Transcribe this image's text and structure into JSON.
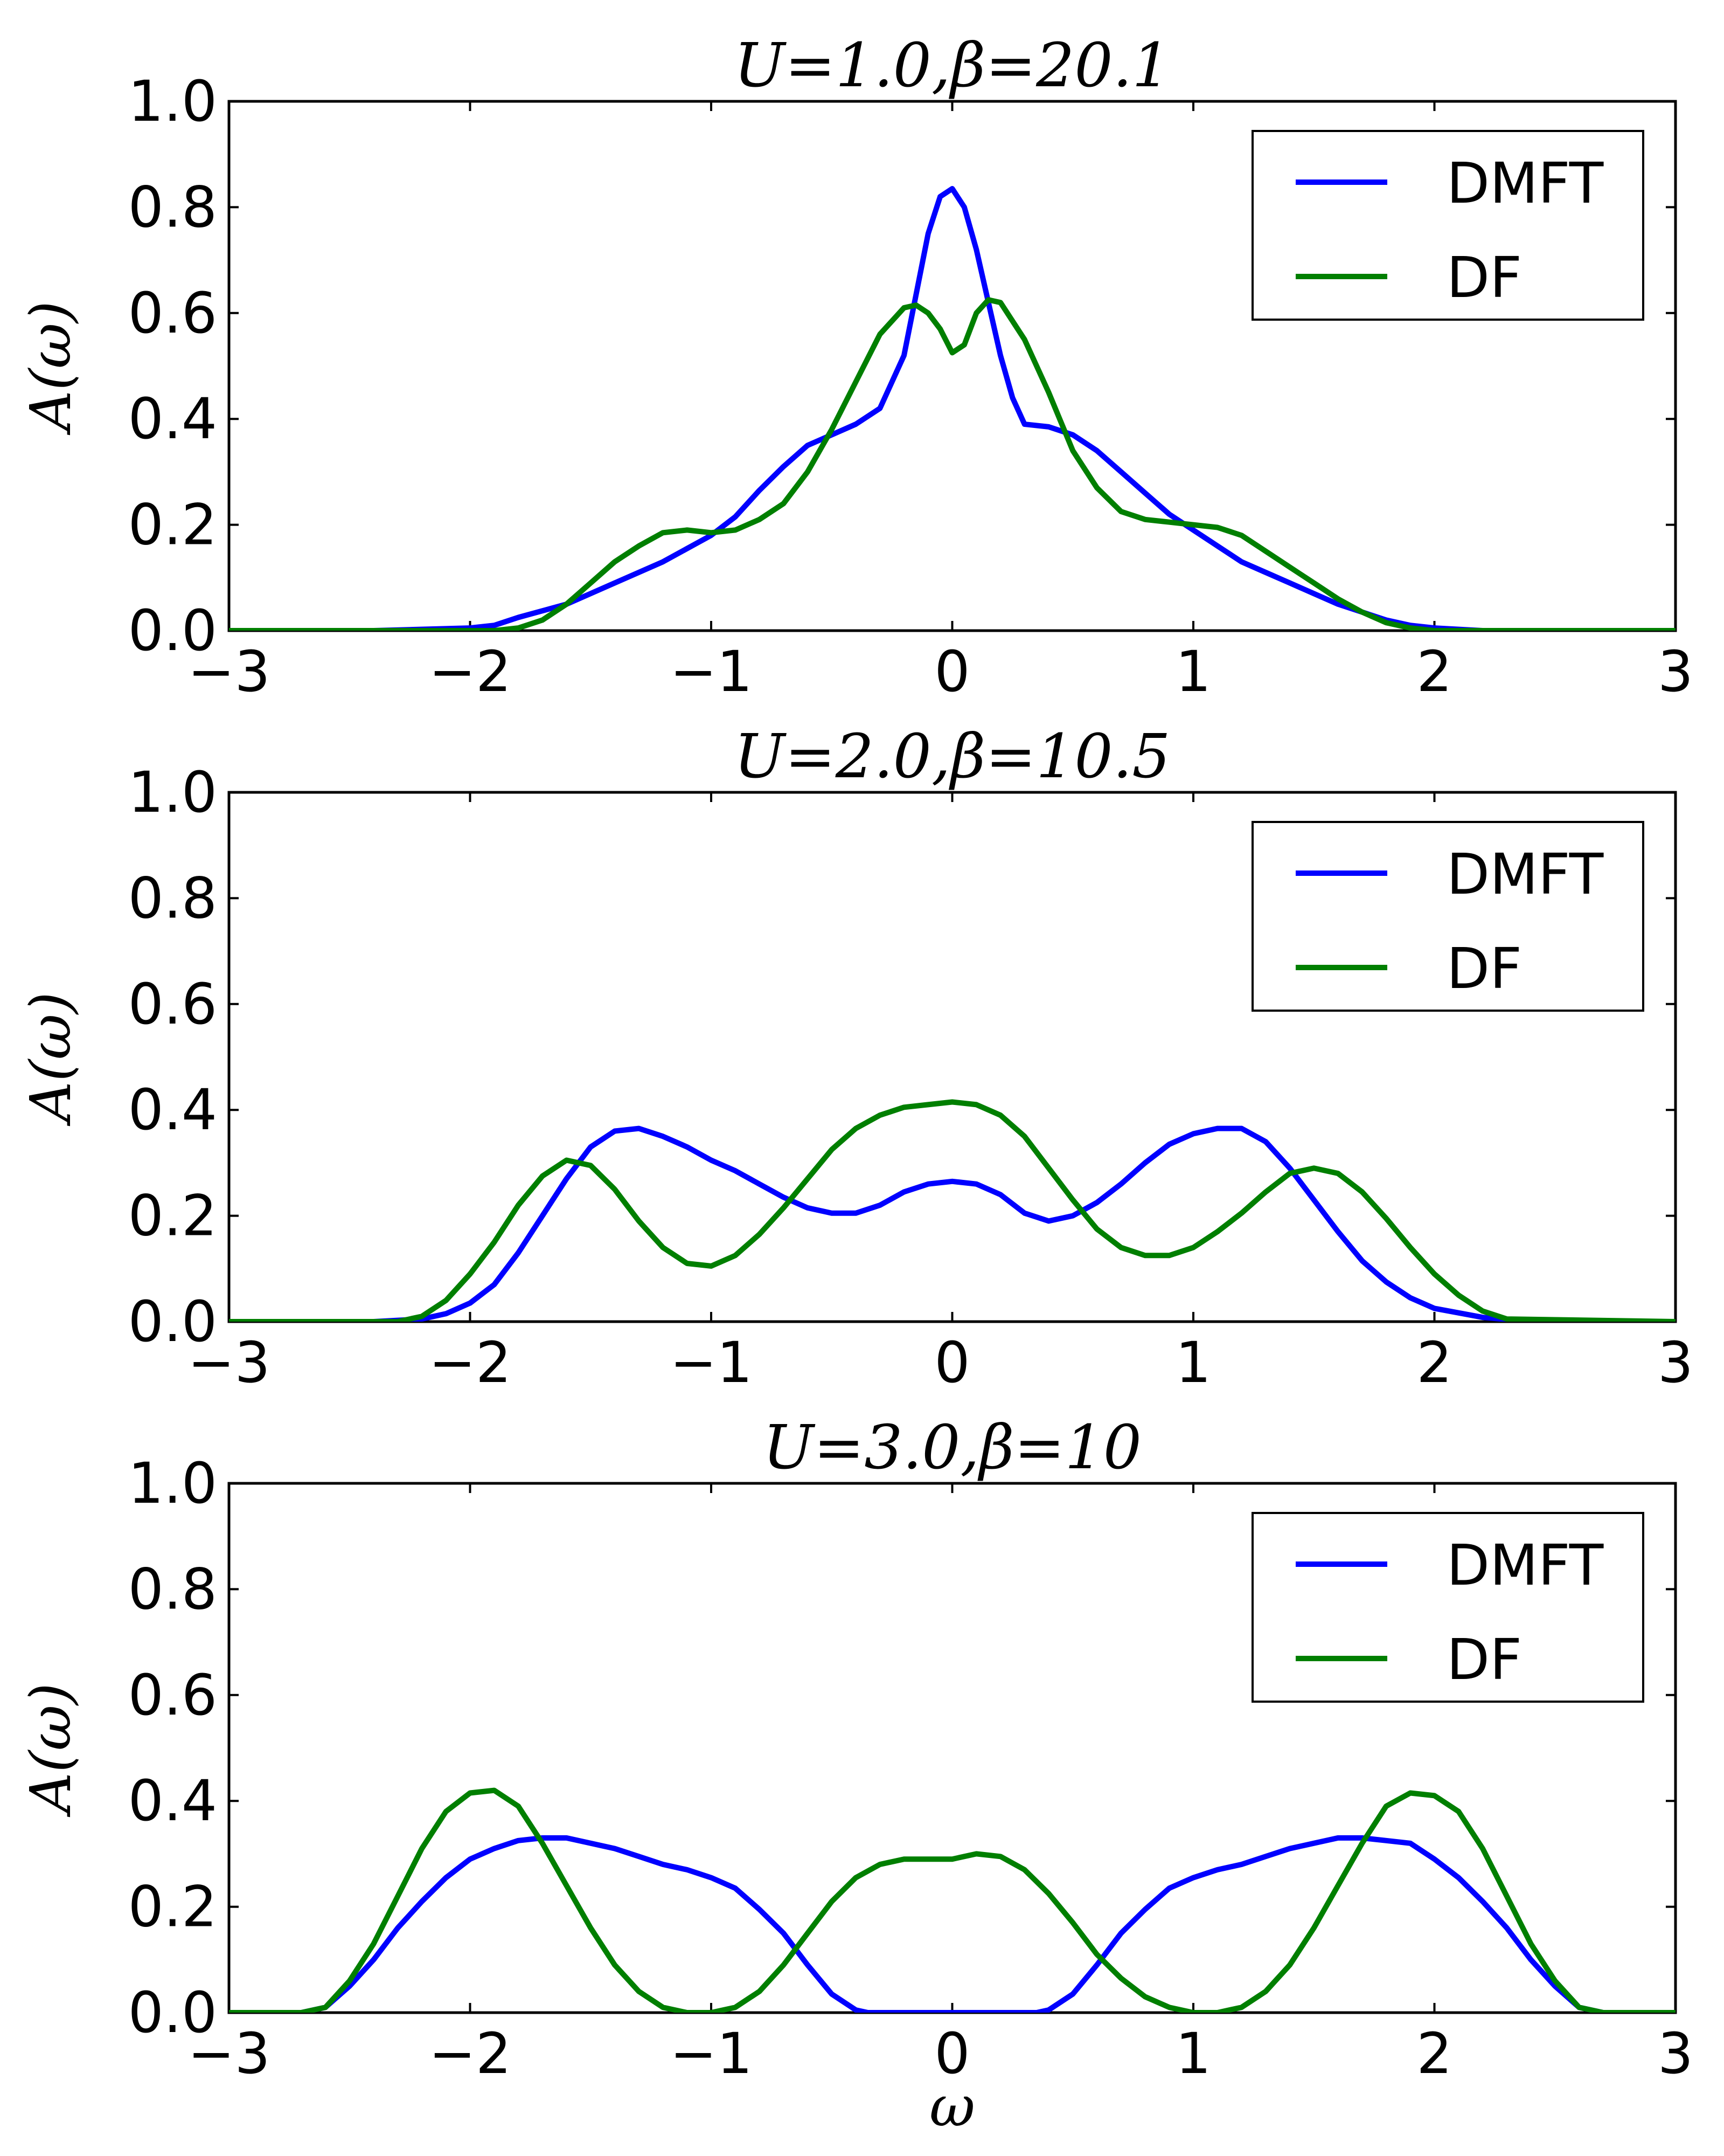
{
  "colors": {
    "DMFT": "#0000ff",
    "DF": "#007f00"
  },
  "legend_entries": [
    "DMFT",
    "DF"
  ],
  "chart_data": [
    {
      "type": "line",
      "title": "U=1.0,β=20.1",
      "xlabel": "",
      "ylabel": "A(ω)",
      "xlim": [
        -3,
        3
      ],
      "ylim": [
        0,
        1.0
      ],
      "xticks": [
        "−3",
        "−2",
        "−1",
        "0",
        "1",
        "2",
        "3"
      ],
      "yticks": [
        "0.0",
        "0.2",
        "0.4",
        "0.6",
        "0.8",
        "1.0"
      ],
      "legend_position": "upper-right",
      "series": [
        {
          "name": "DMFT",
          "x": [
            -3,
            -2.4,
            -2.0,
            -1.9,
            -1.8,
            -1.6,
            -1.4,
            -1.2,
            -1.0,
            -0.9,
            -0.8,
            -0.7,
            -0.6,
            -0.5,
            -0.4,
            -0.3,
            -0.2,
            -0.1,
            -0.05,
            0.0,
            0.05,
            0.1,
            0.2,
            0.25,
            0.3,
            0.4,
            0.5,
            0.6,
            0.7,
            0.8,
            0.9,
            1.0,
            1.1,
            1.2,
            1.3,
            1.4,
            1.5,
            1.6,
            1.7,
            1.8,
            1.9,
            2.0,
            2.2,
            3
          ],
          "y": [
            0,
            0,
            0.005,
            0.01,
            0.025,
            0.05,
            0.09,
            0.13,
            0.18,
            0.215,
            0.265,
            0.31,
            0.35,
            0.37,
            0.39,
            0.42,
            0.52,
            0.75,
            0.82,
            0.835,
            0.8,
            0.72,
            0.52,
            0.44,
            0.39,
            0.385,
            0.37,
            0.34,
            0.3,
            0.26,
            0.22,
            0.19,
            0.16,
            0.13,
            0.11,
            0.09,
            0.07,
            0.05,
            0.035,
            0.02,
            0.01,
            0.005,
            0,
            0
          ]
        },
        {
          "name": "DF",
          "x": [
            -3,
            -1.9,
            -1.8,
            -1.7,
            -1.6,
            -1.5,
            -1.4,
            -1.3,
            -1.2,
            -1.1,
            -1.0,
            -0.9,
            -0.8,
            -0.7,
            -0.6,
            -0.5,
            -0.4,
            -0.3,
            -0.2,
            -0.15,
            -0.1,
            -0.05,
            0.0,
            0.05,
            0.1,
            0.15,
            0.2,
            0.3,
            0.4,
            0.5,
            0.6,
            0.7,
            0.8,
            0.9,
            1.0,
            1.1,
            1.2,
            1.3,
            1.4,
            1.5,
            1.6,
            1.7,
            1.8,
            1.9,
            2.0,
            3
          ],
          "y": [
            0,
            0,
            0.005,
            0.02,
            0.05,
            0.09,
            0.13,
            0.16,
            0.185,
            0.19,
            0.185,
            0.19,
            0.21,
            0.24,
            0.3,
            0.38,
            0.47,
            0.56,
            0.61,
            0.615,
            0.6,
            0.57,
            0.525,
            0.54,
            0.6,
            0.625,
            0.62,
            0.55,
            0.45,
            0.34,
            0.27,
            0.225,
            0.21,
            0.205,
            0.2,
            0.195,
            0.18,
            0.15,
            0.12,
            0.09,
            0.06,
            0.035,
            0.015,
            0.005,
            0,
            0
          ]
        }
      ]
    },
    {
      "type": "line",
      "title": "U=2.0,β=10.5",
      "xlabel": "",
      "ylabel": "A(ω)",
      "xlim": [
        -3,
        3
      ],
      "ylim": [
        0,
        1.0
      ],
      "xticks": [
        "−3",
        "−2",
        "−1",
        "0",
        "1",
        "2",
        "3"
      ],
      "yticks": [
        "0.0",
        "0.2",
        "0.4",
        "0.6",
        "0.8",
        "1.0"
      ],
      "legend_position": "upper-right",
      "series": [
        {
          "name": "DMFT",
          "x": [
            -3,
            -2.4,
            -2.2,
            -2.1,
            -2.0,
            -1.9,
            -1.8,
            -1.7,
            -1.6,
            -1.5,
            -1.4,
            -1.3,
            -1.2,
            -1.1,
            -1.0,
            -0.9,
            -0.8,
            -0.7,
            -0.6,
            -0.5,
            -0.4,
            -0.3,
            -0.2,
            -0.1,
            0.0,
            0.1,
            0.2,
            0.3,
            0.4,
            0.5,
            0.6,
            0.7,
            0.8,
            0.9,
            1.0,
            1.1,
            1.2,
            1.3,
            1.4,
            1.5,
            1.6,
            1.7,
            1.8,
            1.9,
            2.0,
            2.2,
            2.4,
            3
          ],
          "y": [
            0,
            0,
            0.005,
            0.015,
            0.035,
            0.07,
            0.13,
            0.2,
            0.27,
            0.33,
            0.36,
            0.365,
            0.35,
            0.33,
            0.305,
            0.285,
            0.26,
            0.235,
            0.215,
            0.205,
            0.205,
            0.22,
            0.245,
            0.26,
            0.265,
            0.26,
            0.24,
            0.205,
            0.19,
            0.2,
            0.225,
            0.26,
            0.3,
            0.335,
            0.355,
            0.365,
            0.365,
            0.34,
            0.29,
            0.23,
            0.17,
            0.115,
            0.075,
            0.045,
            0.025,
            0.008,
            0,
            0
          ]
        },
        {
          "name": "DF",
          "x": [
            -3,
            -2.3,
            -2.2,
            -2.1,
            -2.0,
            -1.9,
            -1.8,
            -1.7,
            -1.6,
            -1.5,
            -1.4,
            -1.3,
            -1.2,
            -1.1,
            -1.0,
            -0.9,
            -0.8,
            -0.7,
            -0.6,
            -0.5,
            -0.4,
            -0.3,
            -0.2,
            -0.1,
            0.0,
            0.1,
            0.2,
            0.3,
            0.4,
            0.5,
            0.6,
            0.7,
            0.8,
            0.9,
            1.0,
            1.1,
            1.2,
            1.3,
            1.4,
            1.5,
            1.6,
            1.7,
            1.8,
            1.9,
            2.0,
            2.1,
            2.2,
            2.3,
            3
          ],
          "y": [
            0,
            0,
            0.01,
            0.04,
            0.09,
            0.15,
            0.22,
            0.275,
            0.305,
            0.295,
            0.25,
            0.19,
            0.14,
            0.11,
            0.105,
            0.125,
            0.165,
            0.215,
            0.27,
            0.325,
            0.365,
            0.39,
            0.405,
            0.41,
            0.415,
            0.41,
            0.39,
            0.35,
            0.29,
            0.23,
            0.175,
            0.14,
            0.125,
            0.125,
            0.14,
            0.17,
            0.205,
            0.245,
            0.28,
            0.29,
            0.28,
            0.245,
            0.195,
            0.14,
            0.09,
            0.05,
            0.02,
            0.005,
            0
          ]
        }
      ]
    },
    {
      "type": "line",
      "title": "U=3.0,β=10",
      "xlabel": "ω",
      "ylabel": "A(ω)",
      "xlim": [
        -3,
        3
      ],
      "ylim": [
        0,
        1.0
      ],
      "xticks": [
        "−3",
        "−2",
        "−1",
        "0",
        "1",
        "2",
        "3"
      ],
      "yticks": [
        "0.0",
        "0.2",
        "0.4",
        "0.6",
        "0.8",
        "1.0"
      ],
      "legend_position": "upper-right",
      "series": [
        {
          "name": "DMFT",
          "x": [
            -3,
            -2.7,
            -2.6,
            -2.5,
            -2.4,
            -2.3,
            -2.2,
            -2.1,
            -2.0,
            -1.9,
            -1.8,
            -1.7,
            -1.6,
            -1.5,
            -1.4,
            -1.3,
            -1.2,
            -1.1,
            -1.0,
            -0.9,
            -0.8,
            -0.7,
            -0.6,
            -0.5,
            -0.4,
            -0.35,
            -0.3,
            0.3,
            0.35,
            0.4,
            0.5,
            0.6,
            0.7,
            0.8,
            0.9,
            1.0,
            1.1,
            1.2,
            1.3,
            1.4,
            1.5,
            1.6,
            1.7,
            1.8,
            1.9,
            2.0,
            2.1,
            2.2,
            2.3,
            2.4,
            2.5,
            2.6,
            2.7,
            3
          ],
          "y": [
            0,
            0,
            0.01,
            0.05,
            0.1,
            0.16,
            0.21,
            0.255,
            0.29,
            0.31,
            0.325,
            0.33,
            0.33,
            0.32,
            0.31,
            0.295,
            0.28,
            0.27,
            0.255,
            0.235,
            0.195,
            0.15,
            0.09,
            0.035,
            0.005,
            0,
            0,
            0,
            0,
            0.005,
            0.035,
            0.09,
            0.15,
            0.195,
            0.235,
            0.255,
            0.27,
            0.28,
            0.295,
            0.31,
            0.32,
            0.33,
            0.33,
            0.325,
            0.32,
            0.29,
            0.255,
            0.21,
            0.16,
            0.1,
            0.05,
            0.01,
            0,
            0
          ]
        },
        {
          "name": "DF",
          "x": [
            -3,
            -2.7,
            -2.6,
            -2.5,
            -2.4,
            -2.3,
            -2.2,
            -2.1,
            -2.0,
            -1.9,
            -1.8,
            -1.7,
            -1.6,
            -1.5,
            -1.4,
            -1.3,
            -1.2,
            -1.1,
            -1.0,
            -0.9,
            -0.8,
            -0.7,
            -0.6,
            -0.5,
            -0.4,
            -0.3,
            -0.2,
            -0.1,
            0.0,
            0.1,
            0.2,
            0.3,
            0.4,
            0.5,
            0.6,
            0.7,
            0.8,
            0.9,
            1.0,
            1.1,
            1.2,
            1.3,
            1.4,
            1.5,
            1.6,
            1.7,
            1.8,
            1.9,
            2.0,
            2.1,
            2.2,
            2.3,
            2.4,
            2.5,
            2.6,
            2.7,
            3
          ],
          "y": [
            0,
            0,
            0.01,
            0.06,
            0.13,
            0.22,
            0.31,
            0.38,
            0.415,
            0.42,
            0.39,
            0.32,
            0.24,
            0.16,
            0.09,
            0.04,
            0.01,
            0,
            0,
            0.01,
            0.04,
            0.09,
            0.15,
            0.21,
            0.255,
            0.28,
            0.29,
            0.29,
            0.29,
            0.3,
            0.295,
            0.27,
            0.225,
            0.17,
            0.11,
            0.065,
            0.03,
            0.01,
            0,
            0,
            0.01,
            0.04,
            0.09,
            0.16,
            0.24,
            0.32,
            0.39,
            0.415,
            0.41,
            0.38,
            0.31,
            0.22,
            0.13,
            0.06,
            0.01,
            0,
            0
          ]
        }
      ]
    }
  ]
}
